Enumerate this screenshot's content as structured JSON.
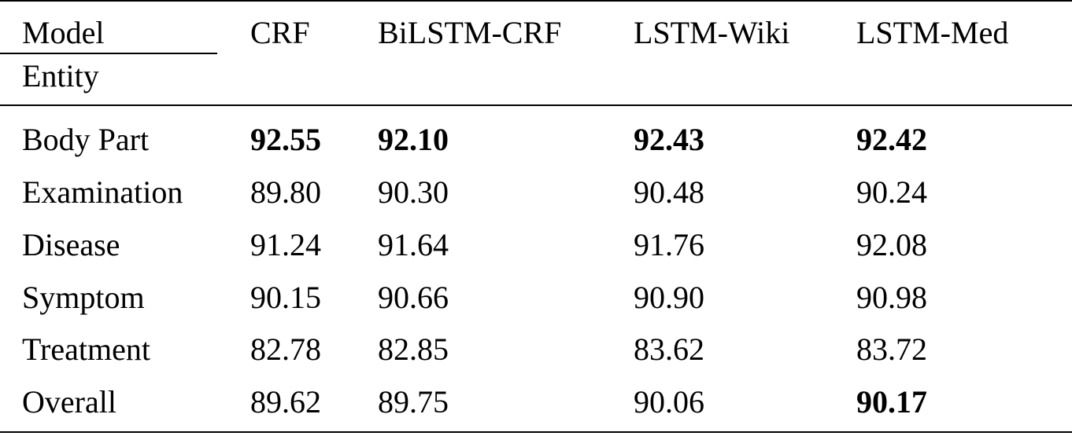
{
  "table": {
    "header": {
      "model": "Model",
      "entity": "Entity",
      "columns": [
        "CRF",
        "BiLSTM-CRF",
        "LSTM-Wiki",
        "LSTM-Med"
      ]
    },
    "rows": [
      [
        "Body Part",
        "92.55",
        "92.10",
        "92.43",
        "92.42"
      ],
      [
        "Examination",
        "89.80",
        "90.30",
        "90.48",
        "90.24"
      ],
      [
        "Disease",
        "91.24",
        "91.64",
        "91.76",
        "92.08"
      ],
      [
        "Symptom",
        "90.15",
        "90.66",
        "90.90",
        "90.98"
      ],
      [
        "Treatment",
        "82.78",
        "82.85",
        "83.62",
        "83.72"
      ],
      [
        "Overall",
        "89.62",
        "89.75",
        "90.06",
        "90.17"
      ]
    ]
  }
}
